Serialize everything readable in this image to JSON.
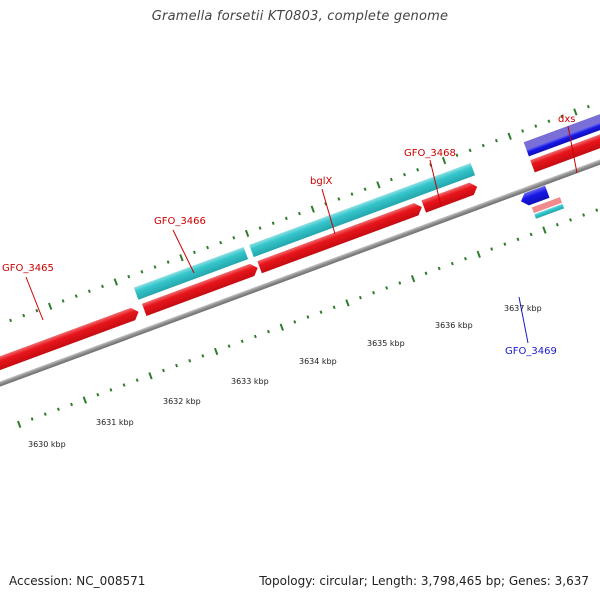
{
  "title": "Gramella forsetii KT0803, complete genome",
  "footer": {
    "accession": "Accession: NC_008571",
    "summary": "Topology: circular; Length: 3,798,465 bp; Genes: 3,637"
  },
  "colors": {
    "backbone": "#8c8c8c",
    "cds_forward": "#e8151b",
    "cds_forward_light": "#f08a8c",
    "gene_forward": "#35c6cc",
    "gene_light": "#8ee0e3",
    "cds_reverse": "#1717e6",
    "cds_reverse_alt": "#6d5fd0",
    "tick": "#2e7d2a",
    "label_forward": "#cc0000",
    "label_reverse": "#1a1acc"
  },
  "scale": {
    "kbp_labels": [
      "3630 kbp",
      "3631 kbp",
      "3632 kbp",
      "3633 kbp",
      "3634 kbp",
      "3635 kbp",
      "3636 kbp",
      "3637 kbp"
    ]
  },
  "gene_labels": [
    {
      "text": "GFO_3465",
      "strand": "forward"
    },
    {
      "text": "GFO_3466",
      "strand": "forward"
    },
    {
      "text": "bglX",
      "strand": "forward"
    },
    {
      "text": "GFO_3468",
      "strand": "forward"
    },
    {
      "text": "dxs",
      "strand": "forward"
    },
    {
      "text": "GFO_3469",
      "strand": "reverse"
    }
  ]
}
